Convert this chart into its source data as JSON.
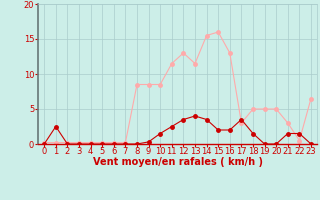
{
  "hours": [
    0,
    1,
    2,
    3,
    4,
    5,
    6,
    7,
    8,
    9,
    10,
    11,
    12,
    13,
    14,
    15,
    16,
    17,
    18,
    19,
    20,
    21,
    22,
    23
  ],
  "wind_mean": [
    0,
    2.5,
    0,
    0,
    0,
    0,
    0,
    0,
    0,
    0.3,
    1.5,
    2.5,
    3.5,
    4,
    3.5,
    2,
    2,
    3.5,
    1.5,
    0,
    0,
    1.5,
    1.5,
    0
  ],
  "wind_gust": [
    0.2,
    0.2,
    0.2,
    0.2,
    0.2,
    0.2,
    0.2,
    0.2,
    8.5,
    8.5,
    8.5,
    11.5,
    13,
    11.5,
    15.5,
    16,
    13,
    3,
    5,
    5,
    5,
    3,
    0.5,
    6.5
  ],
  "wind_mean_color": "#cc0000",
  "wind_gust_color": "#ffaaaa",
  "background_color": "#cceee8",
  "grid_color": "#aacccc",
  "xlabel": "Vent moyen/en rafales ( km/h )",
  "ylim": [
    0,
    20
  ],
  "xlim": [
    -0.5,
    23.5
  ],
  "yticks": [
    0,
    5,
    10,
    15,
    20
  ],
  "xticks": [
    0,
    1,
    2,
    3,
    4,
    5,
    6,
    7,
    8,
    9,
    10,
    11,
    12,
    13,
    14,
    15,
    16,
    17,
    18,
    19,
    20,
    21,
    22,
    23
  ],
  "tick_color": "#cc0000",
  "label_color": "#cc0000",
  "axis_label_fontsize": 7,
  "tick_fontsize": 6,
  "marker_size": 2.5,
  "line_width": 0.8
}
